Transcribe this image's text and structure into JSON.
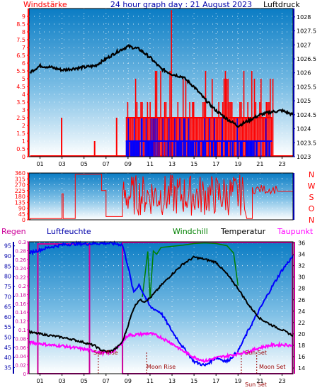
{
  "header": {
    "left_label": "Windstärke",
    "title": "24 hour graph day : 21 August 2023",
    "right_label": "Luftdruck"
  },
  "colors": {
    "wind_speed": "#ff0000",
    "wind_gust": "#0000ff",
    "pressure": "#000000",
    "direction": "#ff0000",
    "temperature": "#000000",
    "humidity": "#0000ff",
    "dewpoint": "#ff00ff",
    "windchill": "#008000",
    "rain": "#cc0099",
    "axis_left": "#ff0000",
    "axis_right": "#0000aa",
    "sky_top": "#0a7cc4",
    "sky_bottom": "#ffffff"
  },
  "x_ticks": [
    "01",
    "03",
    "05",
    "07",
    "09",
    "11",
    "13",
    "15",
    "17",
    "19",
    "21",
    "23"
  ],
  "bottom": {
    "labels": {
      "rain": "Regen",
      "humidity": "Luftfeuchte",
      "windchill": "Windchill",
      "temperature": "Temperatur",
      "dewpoint": "Taupunkt"
    },
    "events": {
      "sun_rise": "Sun Rise",
      "sun_set": "Sun Set",
      "moon_rise": "Moon Rise",
      "moon_set": "Moon Set",
      "sun_set_short": "Sun Set"
    }
  },
  "chart_data": [
    {
      "type": "line",
      "name": "wind-pressure",
      "y_left": {
        "min": 0,
        "max": 9.5,
        "ticks": [
          "0",
          "0.5",
          "1",
          "1.5",
          "2",
          "2.5",
          "3",
          "3.5",
          "4",
          "4.5",
          "5",
          "5.5",
          "6",
          "6.5",
          "7",
          "7.5",
          "8",
          "8.5",
          "9"
        ]
      },
      "y_right": {
        "min": 1023,
        "max": 1028.3,
        "ticks": [
          "1023",
          "1023.5",
          "1024",
          "1024.5",
          "1025",
          "1025.5",
          "1026",
          "1026.5",
          "1027",
          "1027.5",
          "1028"
        ]
      },
      "series": [
        {
          "name": "Luftdruck",
          "x": [
            0,
            1,
            2,
            3,
            4,
            5,
            6,
            7,
            8,
            9,
            10,
            11,
            12,
            13,
            14,
            15,
            16,
            17,
            18,
            19,
            20,
            21,
            22,
            23,
            24
          ],
          "values": [
            1026.0,
            1026.25,
            1026.2,
            1026.1,
            1026.15,
            1026.2,
            1026.25,
            1026.5,
            1026.75,
            1026.95,
            1026.85,
            1026.55,
            1026.15,
            1025.95,
            1025.85,
            1025.5,
            1025.05,
            1024.65,
            1024.35,
            1024.1,
            1024.3,
            1024.5,
            1024.6,
            1024.65,
            1024.5
          ]
        }
      ]
    },
    {
      "type": "bar",
      "name": "wind-direction",
      "y": {
        "min": 0,
        "max": 360,
        "ticks": [
          "0",
          "45",
          "90",
          "135",
          "180",
          "225",
          "270",
          "315",
          "360"
        ]
      },
      "compass": [
        "N",
        "W",
        "S",
        "O",
        "N"
      ]
    },
    {
      "type": "line",
      "name": "temperature-humidity",
      "y_rain": {
        "min": 0,
        "max": 0.3,
        "ticks": [
          "0",
          "0.02",
          "0.04",
          "0.06",
          "0.08",
          "0.1",
          "0.12",
          "0.14",
          "0.16",
          "0.18",
          "0.2",
          "0.22",
          "0.24",
          "0.26",
          "0.28",
          "0.3"
        ]
      },
      "y_humidity": {
        "min": 32,
        "max": 97,
        "ticks": [
          "35",
          "40",
          "45",
          "50",
          "55",
          "60",
          "65",
          "70",
          "75",
          "80",
          "85",
          "90",
          "95"
        ]
      },
      "y_temperature": {
        "min": 13,
        "max": 36.2,
        "ticks": [
          "14",
          "16",
          "18",
          "20",
          "22",
          "24",
          "26",
          "28",
          "30",
          "32",
          "34",
          "36"
        ]
      },
      "series": [
        {
          "name": "Temperatur",
          "x": [
            0,
            1,
            2,
            3,
            4,
            5,
            6,
            6.5,
            7,
            7.5,
            8,
            8.5,
            9,
            9.5,
            10,
            10.5,
            11,
            12,
            13,
            14,
            15,
            16,
            17,
            18,
            19,
            20,
            21,
            22,
            23,
            24
          ],
          "values": [
            20.3,
            20.0,
            19.7,
            19.4,
            19.0,
            18.5,
            17.9,
            17.2,
            16.9,
            17.0,
            17.6,
            18.6,
            21.5,
            24.5,
            26.0,
            25.7,
            26.3,
            28.5,
            30.5,
            32.3,
            33.5,
            33.1,
            32.6,
            30.5,
            28.0,
            25.0,
            22.7,
            21.6,
            20.7,
            19.7
          ]
        },
        {
          "name": "Luftfeuchte",
          "x": [
            0,
            1,
            2,
            3,
            4,
            5,
            6,
            7,
            8,
            8.5,
            9,
            9.5,
            10,
            11,
            12,
            13,
            14,
            15,
            16,
            17,
            18,
            19,
            20,
            21,
            22,
            23,
            24
          ],
          "values": [
            91.5,
            93.0,
            94.5,
            95.5,
            96.0,
            96.0,
            96.2,
            96.3,
            96.0,
            95.5,
            85.0,
            72.0,
            76.0,
            65.0,
            62.0,
            53.0,
            45.0,
            38.0,
            36.0,
            40.0,
            38.0,
            43.0,
            54.0,
            64.0,
            74.0,
            83.0,
            90.0
          ]
        },
        {
          "name": "Taupunkt",
          "x": [
            0,
            1,
            2,
            3,
            4,
            5,
            6,
            6.5,
            7,
            7.5,
            8,
            8.5,
            9,
            9.5,
            10,
            11,
            12,
            13,
            14,
            15,
            16,
            17,
            18,
            19,
            20,
            21,
            22,
            23,
            24
          ],
          "values": [
            18.5,
            18.3,
            18.0,
            17.9,
            17.6,
            17.3,
            17.0,
            16.7,
            16.6,
            16.8,
            17.5,
            18.5,
            19.8,
            19.8,
            19.9,
            20.1,
            19.4,
            18.3,
            17.0,
            15.9,
            15.2,
            15.8,
            16.1,
            16.5,
            16.9,
            17.6,
            18.0,
            18.1,
            18.0
          ]
        },
        {
          "name": "Windchill",
          "x": [
            10.3,
            10.8,
            11.0,
            11.3,
            11.6,
            12.0,
            14,
            15,
            16,
            17,
            18,
            18.6,
            19.0
          ],
          "values": [
            26.5,
            34.5,
            26.2,
            34.6,
            34.0,
            35.2,
            35.6,
            35.9,
            36.0,
            35.9,
            35.5,
            34.2,
            28.5
          ]
        }
      ]
    }
  ]
}
